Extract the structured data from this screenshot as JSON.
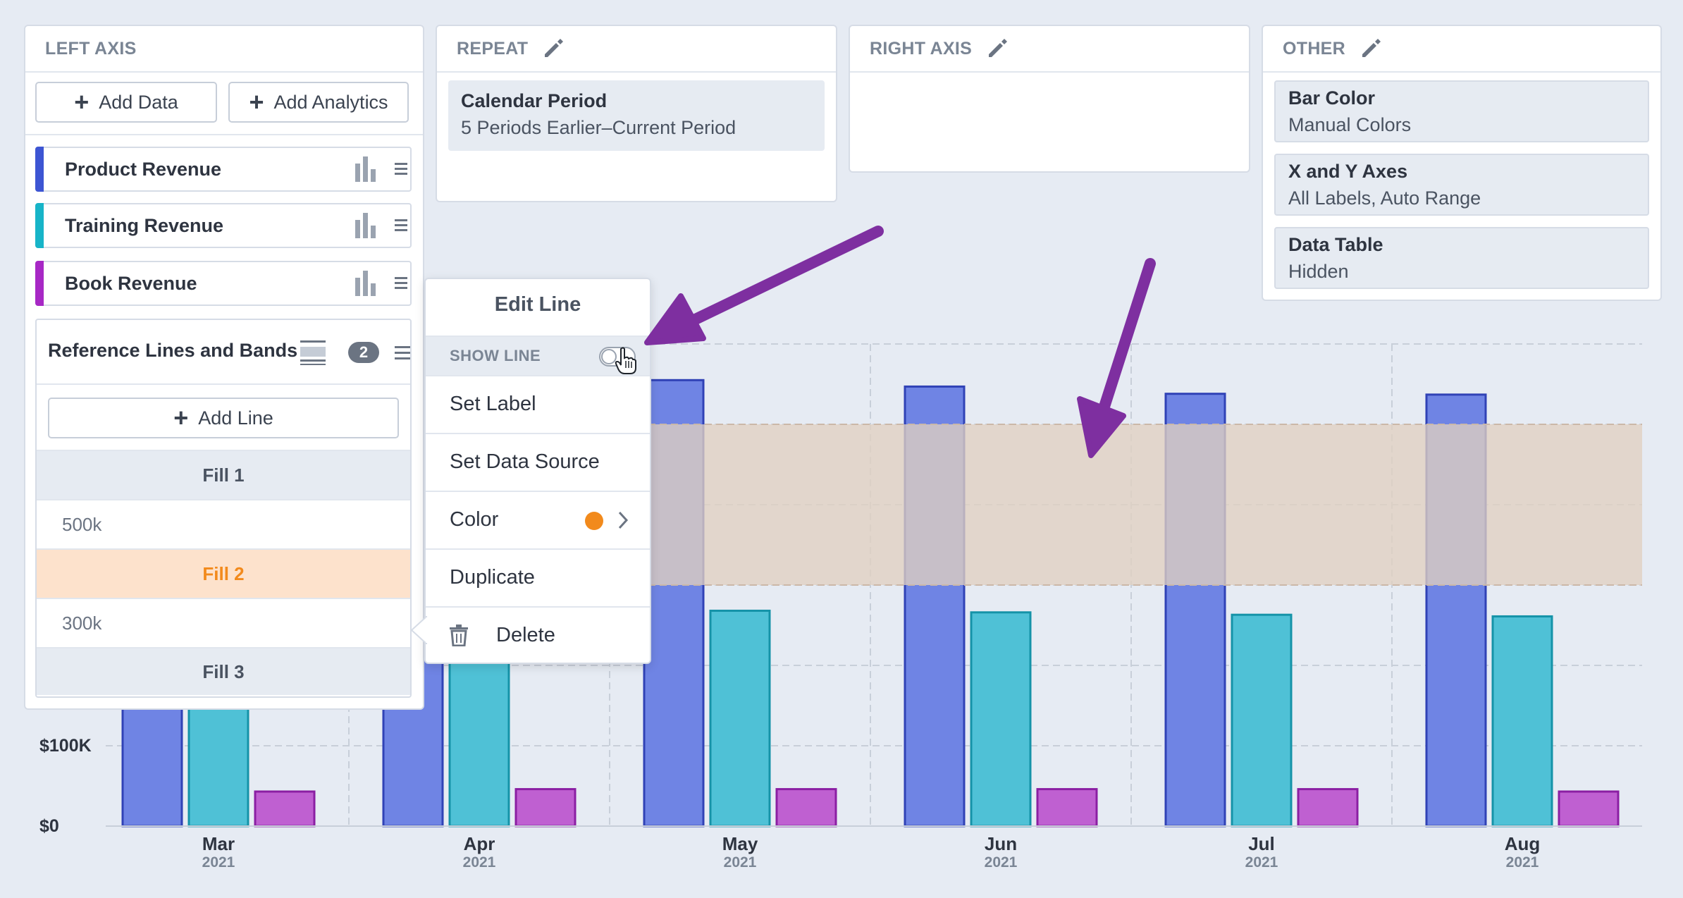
{
  "panels": {
    "left_axis": {
      "title": "LEFT AXIS",
      "add_data_label": "Add Data",
      "add_analytics_label": "Add Analytics",
      "series": [
        {
          "label": "Product Revenue",
          "color": "#3d55d3"
        },
        {
          "label": "Training Revenue",
          "color": "#17b4c8"
        },
        {
          "label": "Book Revenue",
          "color": "#a728c5"
        }
      ],
      "reference": {
        "title": "Reference Lines and Bands",
        "count": "2",
        "add_line_label": "Add Line",
        "rows": [
          "Fill 1",
          "500k",
          "Fill 2",
          "300k",
          "Fill 3"
        ]
      }
    },
    "repeat": {
      "title": "REPEAT",
      "item_title": "Calendar Period",
      "item_sub": "5 Periods Earlier–Current Period"
    },
    "right_axis": {
      "title": "RIGHT AXIS"
    },
    "other": {
      "title": "OTHER",
      "items": [
        {
          "title": "Bar Color",
          "sub": "Manual Colors"
        },
        {
          "title": "X and Y Axes",
          "sub": "All Labels, Auto Range"
        },
        {
          "title": "Data Table",
          "sub": "Hidden"
        }
      ]
    }
  },
  "menu": {
    "title": "Edit Line",
    "show_line_label": "SHOW LINE",
    "set_label": "Set Label",
    "set_data_source": "Set Data Source",
    "color_label": "Color",
    "color_value": "#f28a1c",
    "duplicate": "Duplicate",
    "delete": "Delete"
  },
  "chart_data": {
    "type": "bar",
    "categories": [
      "Mar",
      "Apr",
      "May",
      "Jun",
      "Jul",
      "Aug"
    ],
    "category_years": [
      "2021",
      "2021",
      "2021",
      "2021",
      "2021",
      "2021"
    ],
    "series": [
      {
        "name": "Product Revenue",
        "values": [
          560000,
          560000,
          555000,
          547000,
          538000,
          537000
        ],
        "color": "#6f84e4",
        "stroke": "#3042b6"
      },
      {
        "name": "Training Revenue",
        "values": [
          270000,
          270000,
          268000,
          266000,
          263000,
          261000
        ],
        "color": "#4fc1d6",
        "stroke": "#1593a8"
      },
      {
        "name": "Book Revenue",
        "values": [
          43000,
          46000,
          46000,
          46000,
          46000,
          43000
        ],
        "color": "#bf60d1",
        "stroke": "#8b1fa3"
      }
    ],
    "y_tick_labels": [
      {
        "value": 0,
        "label": "$0"
      },
      {
        "value": 100000,
        "label": "$100K"
      }
    ],
    "ylim": [
      0,
      600000
    ],
    "reference_band": {
      "from": 300000,
      "to": 500000,
      "color": "#e0cfc0"
    },
    "grid": true
  },
  "icons": {
    "pencil": "pencil-icon",
    "bars": "bar-chart-icon",
    "handle": "drag-handle-icon",
    "trash": "trash-icon",
    "cursor": "hand-cursor-icon",
    "ref_lines": "reference-lines-icon"
  }
}
